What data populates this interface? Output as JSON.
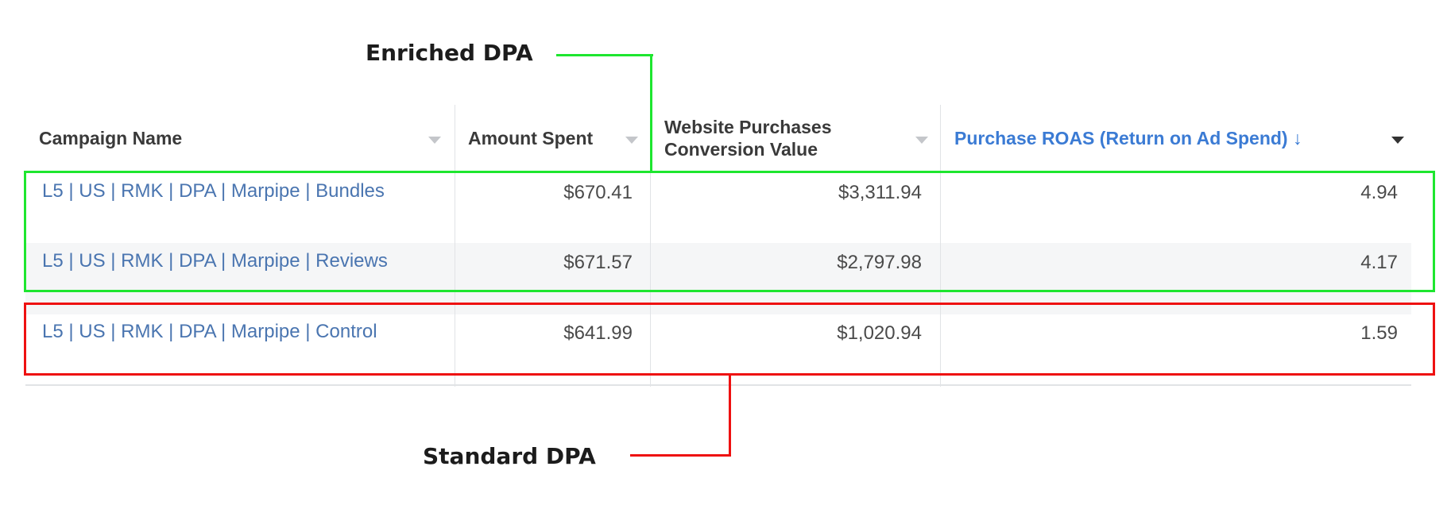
{
  "annotations": {
    "enriched_label": "Enriched DPA",
    "standard_label": "Standard DPA",
    "enriched_color": "#1ee62f",
    "standard_color": "#ee1111"
  },
  "table": {
    "headers": {
      "campaign_name": "Campaign Name",
      "amount_spent": "Amount Spent",
      "conversion_value_line1": "Website Purchases",
      "conversion_value_line2": "Conversion Value",
      "roas": "Purchase ROAS (Return on Ad Spend) ↓"
    },
    "sorted_column_color": "#3b7bd4",
    "link_color": "#4a75b0",
    "rows": [
      {
        "campaign": "L5 | US | RMK | DPA | Marpipe | Bundles",
        "amount_spent": "$670.41",
        "conversion_value": "$3,311.94",
        "roas": "4.94"
      },
      {
        "campaign": "L5 | US | RMK | DPA | Marpipe | Reviews",
        "amount_spent": "$671.57",
        "conversion_value": "$2,797.98",
        "roas": "4.17"
      },
      {
        "campaign": "L5 | US | RMK | DPA | Marpipe | Control",
        "amount_spent": "$641.99",
        "conversion_value": "$1,020.94",
        "roas": "1.59"
      }
    ]
  }
}
